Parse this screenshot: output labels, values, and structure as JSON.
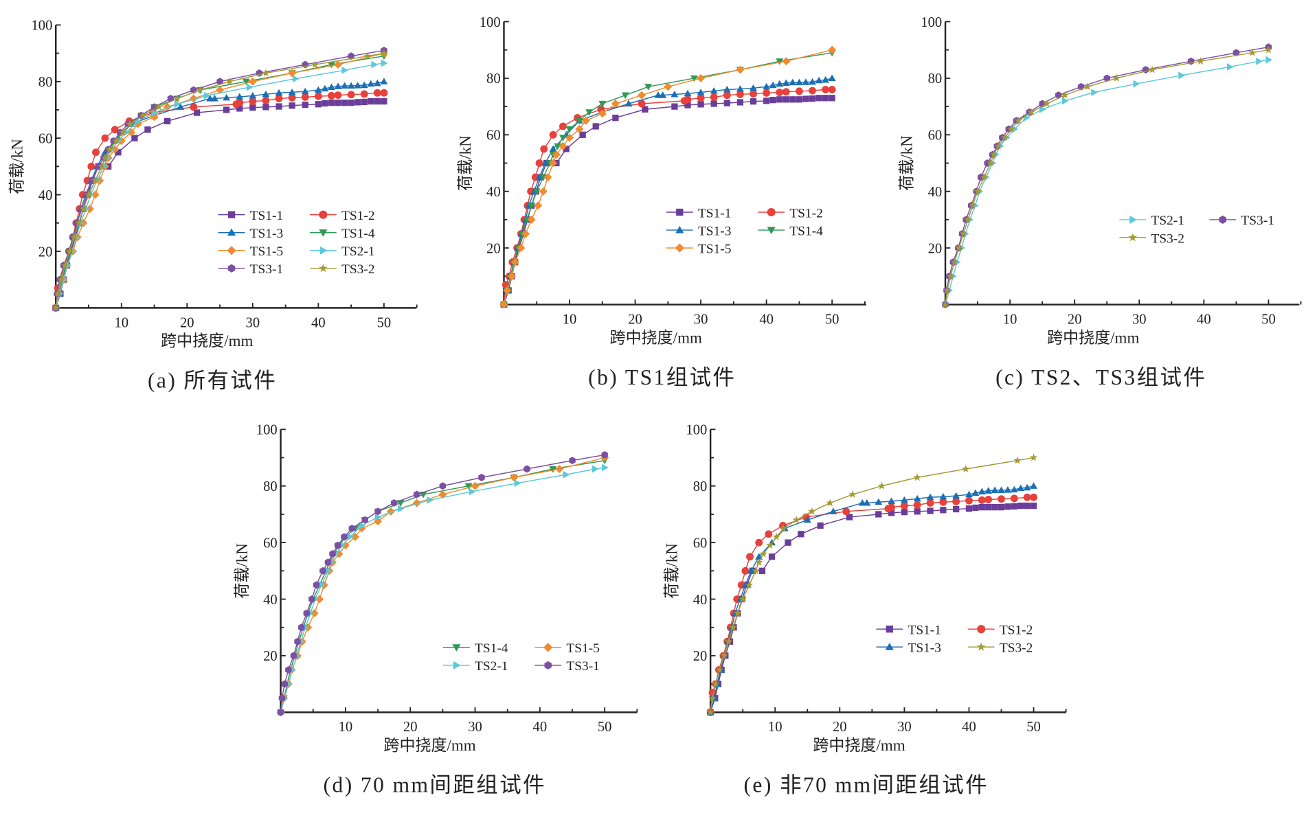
{
  "chart_data": {
    "type": "line",
    "xlabel": "跨中挠度/mm",
    "ylabel": "荷载/kN",
    "xlim": [
      0,
      55
    ],
    "ylim": [
      0,
      100
    ],
    "xticks": [
      "10",
      "20",
      "30",
      "40",
      "50"
    ],
    "yticks": [
      "20",
      "40",
      "60",
      "80",
      "100"
    ],
    "grid": false,
    "series": [
      {
        "name": "TS1-1",
        "color": "#6a3d9a",
        "marker": "square",
        "x": [
          0,
          0.7,
          1.2,
          1.7,
          2.3,
          3,
          3.6,
          4.2,
          4.9,
          5.6,
          6.5,
          8,
          9.5,
          12,
          14,
          17,
          21.5,
          26,
          28,
          30,
          32,
          34,
          36,
          38,
          40,
          41,
          42,
          43,
          44,
          45,
          46,
          47,
          48,
          49,
          50
        ],
        "y": [
          0,
          5,
          10,
          15,
          20,
          25,
          30,
          35,
          40,
          45,
          50,
          50,
          55,
          60,
          63,
          66,
          69,
          70,
          70.5,
          70.8,
          71,
          71.2,
          71.5,
          71.8,
          72,
          72.3,
          72.5,
          72.5,
          72.5,
          72.5,
          72.7,
          72.8,
          73,
          73,
          73
        ]
      },
      {
        "name": "TS1-2",
        "color": "#e8413c",
        "marker": "circle",
        "x": [
          0,
          0.3,
          0.8,
          1.3,
          2,
          2.6,
          3.1,
          3.6,
          4.1,
          4.8,
          5.4,
          6.1,
          7.5,
          9,
          11.2,
          14.8,
          21,
          27.5,
          28,
          30,
          32,
          34,
          36,
          38,
          40,
          42,
          43,
          45,
          47,
          49,
          50
        ],
        "y": [
          0,
          7,
          10,
          15,
          20,
          25,
          30,
          35,
          40,
          45,
          50,
          55,
          60,
          63,
          66,
          69,
          71,
          72,
          72.5,
          73,
          73.3,
          74,
          74.3,
          74.5,
          74.8,
          75,
          75.2,
          75.4,
          75.6,
          76,
          76
        ]
      },
      {
        "name": "TS1-3",
        "color": "#1a6fb5",
        "marker": "triangle-up",
        "x": [
          0,
          0.6,
          1,
          1.6,
          2.1,
          2.7,
          3.3,
          3.8,
          4.6,
          5.4,
          6.3,
          7.5,
          9.5,
          11.5,
          15,
          19,
          23.5,
          24.2,
          26,
          28,
          30,
          32,
          34,
          36,
          38,
          40,
          41,
          42,
          43,
          44,
          45,
          46,
          47,
          48,
          49,
          50
        ],
        "y": [
          0,
          5,
          10,
          15,
          20,
          25,
          30,
          35,
          40,
          45,
          50,
          55,
          60,
          65,
          68,
          71,
          74,
          74,
          74.3,
          74.6,
          75,
          75.5,
          76,
          76.2,
          76.5,
          77,
          77.5,
          78,
          78.3,
          78.5,
          78.5,
          78.6,
          78.7,
          79.2,
          79.4,
          80
        ]
      },
      {
        "name": "TS1-4",
        "color": "#2e9a55",
        "marker": "triangle-down",
        "x": [
          0,
          0.5,
          1,
          1.5,
          2.2,
          2.8,
          3.5,
          4.2,
          5,
          6,
          7,
          7.5,
          8.2,
          9,
          10,
          11.5,
          13,
          15,
          18.5,
          22,
          29,
          36,
          42,
          50
        ],
        "y": [
          0,
          5,
          10,
          15,
          20,
          25,
          30,
          35,
          40,
          45,
          50,
          53,
          56,
          59,
          62,
          65,
          68,
          71,
          74,
          77,
          80,
          83,
          86,
          89
        ]
      },
      {
        "name": "TS1-5",
        "color": "#f28a2e",
        "marker": "diamond",
        "x": [
          0,
          0.5,
          1.2,
          1.7,
          2.6,
          3.3,
          4.2,
          5.2,
          6,
          6.7,
          7.5,
          8,
          9,
          10,
          11.5,
          12.5,
          15,
          17,
          21,
          25,
          30,
          36,
          43,
          50
        ],
        "y": [
          0,
          5,
          10,
          15,
          20,
          25,
          30,
          35,
          40,
          45,
          50,
          53,
          56,
          59,
          62,
          65,
          67.5,
          71,
          74,
          77,
          80,
          83,
          86,
          90
        ]
      },
      {
        "name": "TS2-1",
        "color": "#5cc8d9",
        "marker": "triangle-right",
        "x": [
          0,
          0.6,
          1.2,
          1.8,
          2.5,
          3.1,
          3.8,
          4.6,
          5.3,
          6.3,
          7.3,
          7.8,
          8.5,
          9.5,
          10.7,
          12.5,
          15,
          18.5,
          23,
          29.5,
          36.5,
          44,
          48.5,
          50
        ],
        "y": [
          0,
          5,
          10,
          15,
          20,
          25,
          30,
          35,
          40,
          45,
          50,
          53,
          56,
          59,
          62,
          66,
          69,
          72,
          75,
          78,
          81,
          84,
          86,
          86.5
        ]
      },
      {
        "name": "TS3-1",
        "color": "#7b4fa3",
        "marker": "hexagon",
        "x": [
          0,
          0.2,
          0.6,
          1.2,
          2,
          2.6,
          3.2,
          4,
          4.8,
          5.5,
          6.5,
          7.3,
          8,
          8.8,
          9.8,
          11,
          13,
          15,
          17.5,
          21,
          25,
          31,
          38,
          45,
          50
        ],
        "y": [
          0,
          5,
          10,
          15,
          20,
          25,
          30,
          35,
          40,
          45,
          50,
          53,
          56,
          59,
          62,
          65,
          68,
          71,
          74,
          77,
          80,
          83,
          86,
          89,
          91
        ]
      },
      {
        "name": "TS3-2",
        "color": "#a59a35",
        "marker": "star",
        "x": [
          0,
          0.3,
          0.8,
          1.4,
          2.1,
          2.8,
          3.5,
          4.2,
          5,
          6,
          7,
          7.5,
          8.2,
          9.2,
          10.2,
          11.3,
          13.3,
          15.7,
          18.5,
          22,
          26.5,
          32,
          39.5,
          47.5,
          50
        ],
        "y": [
          0,
          5,
          10,
          15,
          20,
          25,
          30,
          35,
          40,
          45,
          50,
          53,
          56,
          59,
          62,
          65,
          68,
          71,
          74,
          77,
          80,
          83,
          86,
          89,
          90
        ]
      }
    ],
    "panels": [
      {
        "caption": "(a) 所有试件",
        "series": [
          "TS1-1",
          "TS1-2",
          "TS1-3",
          "TS1-4",
          "TS1-5",
          "TS2-1",
          "TS3-1",
          "TS3-2"
        ],
        "legend": "bottom-right"
      },
      {
        "caption": "(b) TS1组试件",
        "series": [
          "TS1-1",
          "TS1-2",
          "TS1-3",
          "TS1-4",
          "TS1-5"
        ],
        "legend": "center-right"
      },
      {
        "caption": "(c) TS2、TS3组试件",
        "series": [
          "TS2-1",
          "TS3-1",
          "TS3-2"
        ],
        "legend": "center-right"
      },
      {
        "caption": "(d) 70 mm间距组试件",
        "series": [
          "TS1-4",
          "TS1-5",
          "TS2-1",
          "TS3-1"
        ],
        "legend": "bottom-right"
      },
      {
        "caption": "(e) 非70 mm间距组试件",
        "series": [
          "TS1-1",
          "TS1-2",
          "TS1-3",
          "TS3-2"
        ],
        "legend": "bottom-right"
      }
    ]
  }
}
